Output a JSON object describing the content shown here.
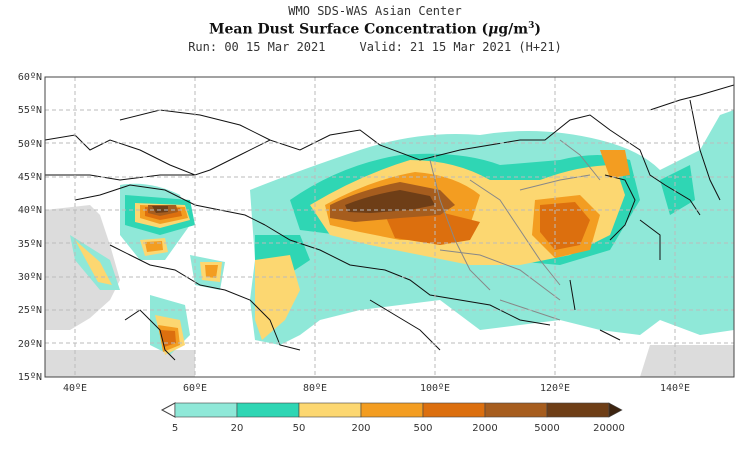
{
  "header": {
    "line1": "WMO SDS-WAS Asian Center",
    "line2": "Mean Dust Surface Concentration (μg/m³)",
    "run": "Run: 00 15 Mar 2021",
    "valid": "Valid: 21 15 Mar 2021 (H+21)"
  },
  "map": {
    "lat_labels": [
      "60ºN",
      "55ºN",
      "50ºN",
      "45ºN",
      "40ºN",
      "35ºN",
      "30ºN",
      "25ºN",
      "20ºN",
      "15ºN"
    ],
    "lon_labels": [
      "40ºE",
      "60ºE",
      "80ºE",
      "100ºE",
      "120ºE",
      "140ºE"
    ],
    "lat_range": [
      15,
      60
    ],
    "lon_range": [
      35,
      150
    ],
    "grid": true
  },
  "colorbar": {
    "labels": [
      "5",
      "20",
      "50",
      "200",
      "500",
      "2000",
      "5000",
      "20000"
    ],
    "colors": [
      "#8fe8d8",
      "#2fd6b4",
      "#fcd771",
      "#f39d21",
      "#dc6f0e",
      "#a65d1e",
      "#6e3e17",
      "#3d2410"
    ]
  }
}
